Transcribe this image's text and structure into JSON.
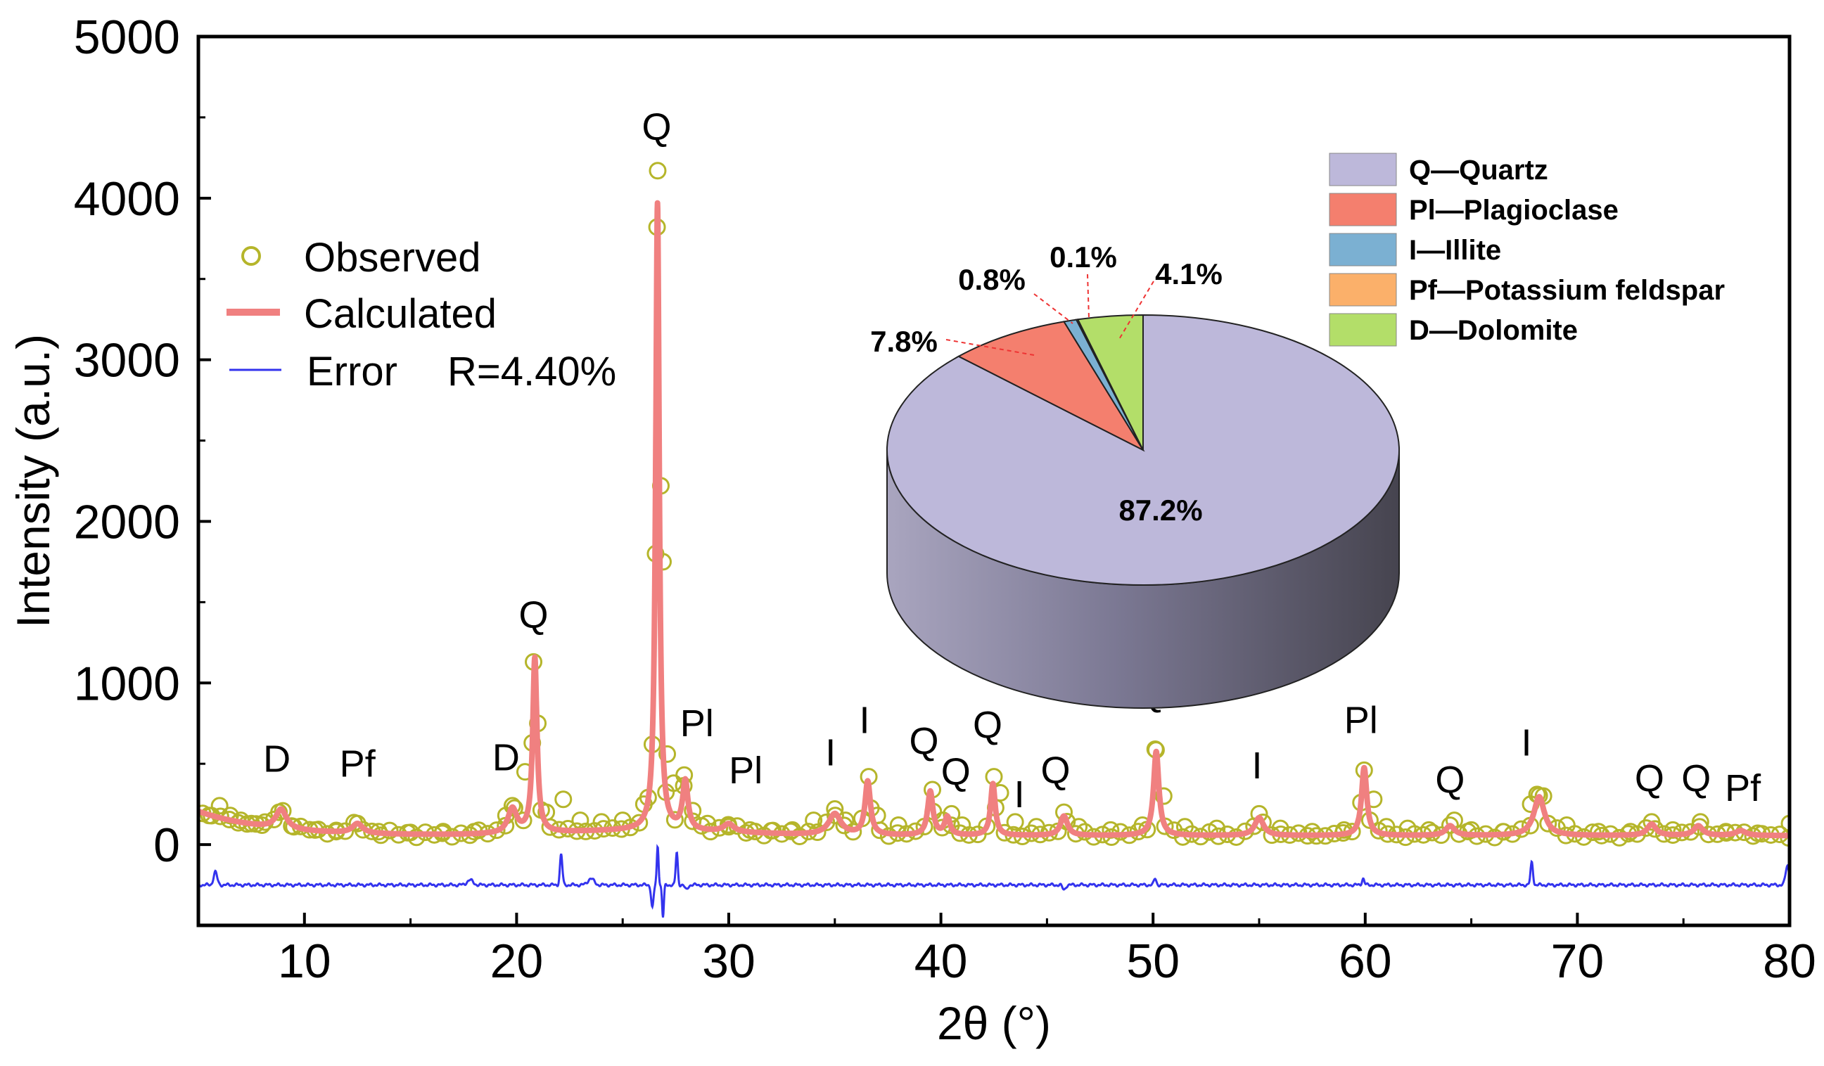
{
  "chart_data": [
    {
      "type": "line",
      "xlabel": "2θ (°)",
      "ylabel": "Intensity (a.u.)",
      "xlim": [
        5,
        80
      ],
      "ylim": [
        -500,
        5000
      ],
      "x_ticks": [
        10,
        20,
        30,
        40,
        50,
        60,
        70,
        80
      ],
      "y_ticks": [
        0,
        1000,
        2000,
        3000,
        4000,
        5000
      ],
      "legend_position": "upper-left",
      "grid": false,
      "series": [
        {
          "name": "Observed",
          "style": "hollow-circle",
          "color": "#b5b52a",
          "points": [
            [
              5.5,
              180
            ],
            [
              6,
              240
            ],
            [
              6.5,
              180
            ],
            [
              7,
              150
            ],
            [
              7.5,
              130
            ],
            [
              8,
              120
            ],
            [
              8.8,
              200
            ],
            [
              9.5,
              110
            ],
            [
              10.5,
              90
            ],
            [
              11.5,
              80
            ],
            [
              12.5,
              130
            ],
            [
              13.5,
              80
            ],
            [
              15,
              75
            ],
            [
              16.5,
              70
            ],
            [
              18,
              80
            ],
            [
              19.5,
              180
            ],
            [
              19.8,
              240
            ],
            [
              20.4,
              450
            ],
            [
              20.8,
              1130
            ],
            [
              21.0,
              750
            ],
            [
              21.4,
              200
            ],
            [
              22.2,
              280
            ],
            [
              23,
              150
            ],
            [
              24,
              140
            ],
            [
              25,
              150
            ],
            [
              26,
              250
            ],
            [
              26.4,
              620
            ],
            [
              26.55,
              1800
            ],
            [
              26.65,
              4170
            ],
            [
              26.8,
              2220
            ],
            [
              26.9,
              1750
            ],
            [
              27.1,
              560
            ],
            [
              27.4,
              380
            ],
            [
              27.9,
              430
            ],
            [
              28.3,
              210
            ],
            [
              29,
              130
            ],
            [
              30,
              110
            ],
            [
              31,
              90
            ],
            [
              32,
              85
            ],
            [
              33,
              90
            ],
            [
              34,
              150
            ],
            [
              35,
              220
            ],
            [
              35.5,
              150
            ],
            [
              36.6,
              420
            ],
            [
              37,
              180
            ],
            [
              38,
              120
            ],
            [
              39.6,
              340
            ],
            [
              40.1,
              150
            ],
            [
              40.5,
              190
            ],
            [
              41,
              120
            ],
            [
              42.5,
              420
            ],
            [
              42.8,
              320
            ],
            [
              43.5,
              140
            ],
            [
              44.5,
              110
            ],
            [
              45.8,
              200
            ],
            [
              46.5,
              110
            ],
            [
              48,
              90
            ],
            [
              49.5,
              120
            ],
            [
              50.1,
              590
            ],
            [
              50.5,
              300
            ],
            [
              51.5,
              110
            ],
            [
              53,
              100
            ],
            [
              55,
              190
            ],
            [
              56,
              100
            ],
            [
              57.5,
              80
            ],
            [
              59,
              90
            ],
            [
              59.95,
              460
            ],
            [
              60.4,
              280
            ],
            [
              61,
              110
            ],
            [
              62,
              100
            ],
            [
              63,
              90
            ],
            [
              64.2,
              150
            ],
            [
              65,
              90
            ],
            [
              66.5,
              80
            ],
            [
              67.8,
              250
            ],
            [
              68.1,
              310
            ],
            [
              68.4,
              300
            ],
            [
              69.5,
              120
            ],
            [
              71,
              80
            ],
            [
              72.5,
              80
            ],
            [
              73.5,
              140
            ],
            [
              74.5,
              90
            ],
            [
              75.8,
              140
            ],
            [
              77,
              80
            ],
            [
              78.5,
              70
            ],
            [
              80,
              130
            ]
          ]
        },
        {
          "name": "Calculated",
          "style": "thick-line",
          "color": "#f08080",
          "peaks": [
            [
              8.9,
              120,
              0.3
            ],
            [
              12.5,
              60,
              0.3
            ],
            [
              19.8,
              150,
              0.25
            ],
            [
              20.86,
              1080,
              0.12
            ],
            [
              26.64,
              3880,
              0.1
            ],
            [
              27.95,
              300,
              0.15
            ],
            [
              30.0,
              50,
              0.3
            ],
            [
              35.0,
              130,
              0.35
            ],
            [
              36.55,
              330,
              0.15
            ],
            [
              39.5,
              270,
              0.15
            ],
            [
              40.3,
              110,
              0.15
            ],
            [
              42.45,
              320,
              0.13
            ],
            [
              45.8,
              120,
              0.2
            ],
            [
              50.15,
              520,
              0.15
            ],
            [
              55.0,
              110,
              0.25
            ],
            [
              59.95,
              420,
              0.15
            ],
            [
              64.0,
              60,
              0.25
            ],
            [
              68.2,
              240,
              0.3
            ],
            [
              73.5,
              70,
              0.25
            ],
            [
              75.7,
              60,
              0.25
            ],
            [
              77.7,
              30,
              0.3
            ]
          ]
        },
        {
          "name": "Error",
          "style": "thin-line",
          "color": "#3333ee",
          "baseline": -250,
          "spikes": [
            [
              5.8,
              80,
              0.12
            ],
            [
              17.8,
              30,
              0.2
            ],
            [
              22.1,
              190,
              0.08
            ],
            [
              23.5,
              40,
              0.2
            ],
            [
              26.4,
              -140,
              0.08
            ],
            [
              26.65,
              240,
              0.06
            ],
            [
              26.9,
              -200,
              0.06
            ],
            [
              27.55,
              200,
              0.07
            ],
            [
              28,
              -30,
              0.1
            ],
            [
              45.8,
              -30,
              0.1
            ],
            [
              50.1,
              40,
              0.08
            ],
            [
              59.9,
              40,
              0.08
            ],
            [
              67.85,
              140,
              0.08
            ],
            [
              79.9,
              120,
              0.12
            ]
          ]
        }
      ],
      "peak_labels": [
        {
          "text": "D",
          "x": 8.7,
          "y": 450
        },
        {
          "text": "Pf",
          "x": 12.5,
          "y": 420
        },
        {
          "text": "D",
          "x": 19.5,
          "y": 460
        },
        {
          "text": "Q",
          "x": 20.8,
          "y": 1340
        },
        {
          "text": "Q",
          "x": 26.6,
          "y": 4360
        },
        {
          "text": "Pl",
          "x": 28.5,
          "y": 670
        },
        {
          "text": "Pl",
          "x": 30.8,
          "y": 380
        },
        {
          "text": "I",
          "x": 34.8,
          "y": 490
        },
        {
          "text": "I",
          "x": 36.4,
          "y": 690
        },
        {
          "text": "Q",
          "x": 39.2,
          "y": 560
        },
        {
          "text": "Q",
          "x": 40.7,
          "y": 370
        },
        {
          "text": "Q",
          "x": 42.2,
          "y": 660
        },
        {
          "text": "I",
          "x": 43.7,
          "y": 230
        },
        {
          "text": "Q",
          "x": 45.4,
          "y": 380
        },
        {
          "text": "Q",
          "x": 49.9,
          "y": 860
        },
        {
          "text": "I",
          "x": 54.9,
          "y": 410
        },
        {
          "text": "Pl",
          "x": 59.8,
          "y": 690
        },
        {
          "text": "Q",
          "x": 64.0,
          "y": 320
        },
        {
          "text": "I",
          "x": 67.6,
          "y": 550
        },
        {
          "text": "Q",
          "x": 73.4,
          "y": 330
        },
        {
          "text": "Q",
          "x": 75.6,
          "y": 330
        },
        {
          "text": "Pf",
          "x": 77.8,
          "y": 270
        }
      ],
      "legend": {
        "observed": "Observed",
        "calculated": "Calculated",
        "error": "Error",
        "r_value": "R=4.40%"
      }
    },
    {
      "type": "pie",
      "style": "3d",
      "slices": [
        {
          "label": "Q—Quartz",
          "value": 87.2,
          "pct_text": "87.2%",
          "color": "#bdb8da"
        },
        {
          "label": "Pl—Plagioclase",
          "value": 7.8,
          "pct_text": "7.8%",
          "color": "#f47f6e"
        },
        {
          "label": "I—Illite",
          "value": 0.8,
          "pct_text": "0.8%",
          "color": "#7bb0d2"
        },
        {
          "label": "Pf—Potassium feldspar",
          "value": 0.1,
          "pct_text": "0.1%",
          "color": "#fbb06a"
        },
        {
          "label": "D—Dolomite",
          "value": 4.1,
          "pct_text": "4.1%",
          "color": "#b3de69"
        }
      ]
    }
  ]
}
